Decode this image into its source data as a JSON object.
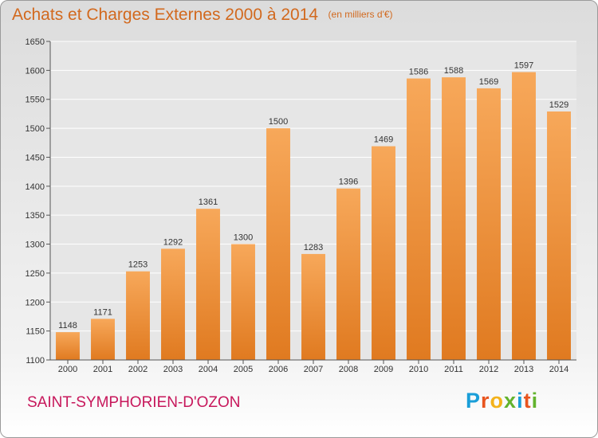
{
  "header": {
    "title": "Achats et Charges Externes 2000 à 2014",
    "unit": "(en milliers d'€)"
  },
  "footer": {
    "commune": "SAINT-SYMPHORIEN-D'OZON",
    "brand": "Proxiti"
  },
  "colors": {
    "accent": "#d2691e",
    "commune": "#c7175b",
    "bar_light": "#f7a85a",
    "bar_dark": "#e07a20",
    "brand_letters": [
      "#1a9ed8",
      "#e8551f",
      "#f3b21b",
      "#63b32e",
      "#1a9ed8",
      "#e8551f",
      "#63b32e"
    ]
  },
  "chart_data": {
    "type": "bar",
    "categories": [
      "2000",
      "2001",
      "2002",
      "2003",
      "2004",
      "2005",
      "2006",
      "2007",
      "2008",
      "2009",
      "2010",
      "2011",
      "2012",
      "2013",
      "2014"
    ],
    "values": [
      1148,
      1171,
      1253,
      1292,
      1361,
      1300,
      1500,
      1283,
      1396,
      1469,
      1586,
      1588,
      1569,
      1597,
      1529
    ],
    "ylim": [
      1100,
      1650
    ],
    "yticks": [
      1100,
      1150,
      1200,
      1250,
      1300,
      1350,
      1400,
      1450,
      1500,
      1550,
      1600,
      1650
    ],
    "grid": true,
    "data_labels": true
  }
}
